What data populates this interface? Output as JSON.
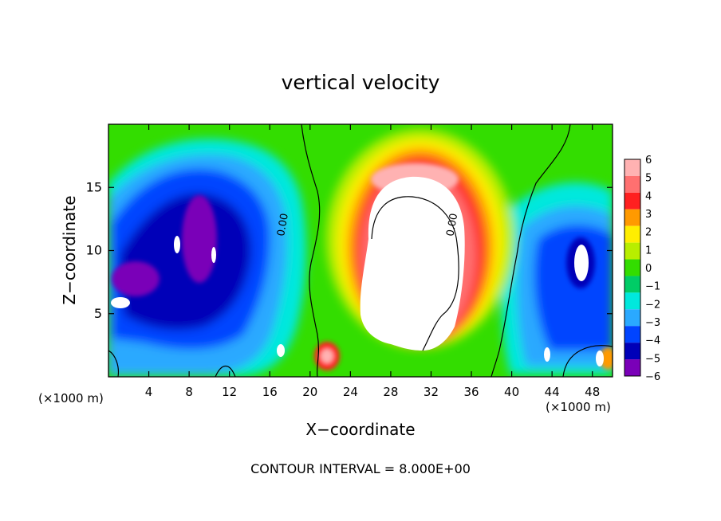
{
  "chart_data": {
    "type": "heatmap",
    "title": "vertical velocity",
    "xlabel": "X−coordinate",
    "ylabel": "Z−coordinate",
    "x_unit_left": "(×1000 m)",
    "x_unit_right": "(×1000 m)",
    "footer": "CONTOUR INTERVAL = 8.000E+00",
    "xlim": [
      0,
      50
    ],
    "ylim": [
      0,
      20
    ],
    "x_ticks": [
      4,
      8,
      12,
      16,
      20,
      24,
      28,
      32,
      36,
      40,
      44,
      48
    ],
    "y_ticks": [
      5,
      10,
      15
    ],
    "colorbar": {
      "levels": [
        6,
        5,
        4,
        3,
        2,
        1,
        0,
        -1,
        -2,
        -3,
        -4,
        -5,
        -6
      ],
      "labels": [
        "6",
        "5",
        "4",
        "3",
        "2",
        "1",
        "0",
        "−1",
        "−2",
        "−3",
        "−4",
        "−5",
        "−6"
      ],
      "colors": [
        "#ffb2b2",
        "#ff7070",
        "#ff2020",
        "#ff9a00",
        "#ffee00",
        "#b8ee00",
        "#33dd00",
        "#00cc66",
        "#00e8dd",
        "#2aa9ff",
        "#0044ff",
        "#0000b8",
        "#7a00b8"
      ]
    },
    "contour_labels": [
      {
        "text": "0.00",
        "x": 17.6,
        "z": 12.0
      },
      {
        "text": "0.00",
        "x": 34.4,
        "z": 12.0
      }
    ],
    "features": [
      {
        "kind": "updraft_core",
        "x_range": [
          25.5,
          35.5
        ],
        "z_range": [
          1.5,
          14.5
        ],
        "max_value": ">6"
      },
      {
        "kind": "downdraft_region",
        "x_range": [
          0,
          17
        ],
        "z_range": [
          0,
          17
        ],
        "min_value": "<-6"
      },
      {
        "kind": "downdraft_region",
        "x_range": [
          41,
          50
        ],
        "z_range": [
          0,
          13
        ],
        "min_value": "<-6"
      }
    ]
  }
}
